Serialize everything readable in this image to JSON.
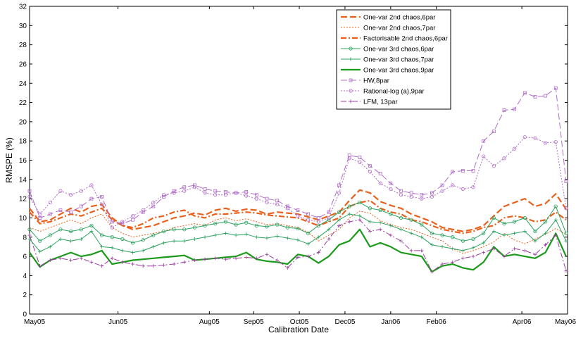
{
  "chart_data": {
    "type": "line",
    "title": "",
    "xlabel": "Calibration Date",
    "ylabel": "RMSPE (%)",
    "ylim": [
      0,
      32
    ],
    "yticks": [
      0,
      2,
      4,
      6,
      8,
      10,
      12,
      14,
      16,
      18,
      20,
      22,
      24,
      26,
      28,
      30,
      32
    ],
    "xlim": [
      "2005-05-01",
      "2006-05-01"
    ],
    "xticks": [
      {
        "date": "2005-05-01",
        "label": "May05"
      },
      {
        "date": "2005-06-30",
        "label": "Jun05"
      },
      {
        "date": "2005-08-31",
        "label": "Aug05"
      },
      {
        "date": "2005-09-30",
        "label": "Sep05"
      },
      {
        "date": "2005-10-31",
        "label": "Oct05"
      },
      {
        "date": "2005-12-01",
        "label": "Dec05"
      },
      {
        "date": "2006-01-01",
        "label": "Jan06"
      },
      {
        "date": "2006-02-01",
        "label": "Feb06"
      },
      {
        "date": "2006-03-31",
        "label": "Apr06"
      },
      {
        "date": "2006-05-01",
        "label": "May06"
      }
    ],
    "grid": false,
    "legend_position": "top-center",
    "x": [
      "2005-05-01",
      "2005-05-08",
      "2005-05-15",
      "2005-05-22",
      "2005-05-29",
      "2005-06-05",
      "2005-06-12",
      "2005-06-19",
      "2005-06-26",
      "2005-07-03",
      "2005-07-10",
      "2005-07-17",
      "2005-07-24",
      "2005-07-31",
      "2005-08-07",
      "2005-08-14",
      "2005-08-21",
      "2005-08-28",
      "2005-09-04",
      "2005-09-11",
      "2005-09-18",
      "2005-09-25",
      "2005-10-02",
      "2005-10-09",
      "2005-10-16",
      "2005-10-23",
      "2005-10-30",
      "2005-11-06",
      "2005-11-13",
      "2005-11-20",
      "2005-11-27",
      "2005-12-04",
      "2005-12-11",
      "2005-12-18",
      "2005-12-25",
      "2006-01-01",
      "2006-01-08",
      "2006-01-15",
      "2006-01-22",
      "2006-01-29",
      "2006-02-05",
      "2006-02-12",
      "2006-02-19",
      "2006-02-26",
      "2006-03-05",
      "2006-03-12",
      "2006-03-19",
      "2006-03-26",
      "2006-04-02",
      "2006-04-09",
      "2006-04-16",
      "2006-04-23",
      "2006-04-30"
    ],
    "series": [
      {
        "name": "One-var 2nd chaos,6par",
        "color": "#e8601c",
        "style": "dashed-thick",
        "marker": "none",
        "values": [
          11.0,
          9.6,
          9.8,
          10.4,
          11.0,
          10.6,
          11.2,
          11.4,
          10.0,
          9.2,
          8.8,
          9.0,
          9.2,
          9.6,
          10.0,
          10.2,
          10.5,
          10.3,
          10.8,
          11.0,
          10.7,
          10.9,
          10.8,
          10.4,
          10.6,
          10.5,
          10.4,
          10.1,
          9.8,
          10.2,
          10.6,
          11.8,
          12.9,
          12.6,
          11.7,
          11.3,
          11.0,
          10.4,
          10.0,
          9.6,
          9.0,
          8.8,
          8.6,
          8.8,
          9.2,
          10.2,
          11.2,
          11.6,
          12.0,
          11.2,
          11.5,
          12.5,
          10.9
        ]
      },
      {
        "name": "One-var 2nd chaos,7par",
        "color": "#e8601c",
        "style": "dotted",
        "marker": "none",
        "values": [
          9.0,
          8.6,
          9.0,
          9.4,
          9.8,
          9.4,
          10.0,
          10.4,
          9.0,
          8.4,
          8.0,
          8.2,
          8.4,
          8.6,
          9.0,
          9.2,
          9.4,
          9.2,
          9.8,
          10.0,
          9.7,
          9.9,
          9.6,
          9.3,
          9.4,
          9.2,
          9.0,
          8.5,
          7.6,
          8.2,
          8.8,
          10.0,
          10.7,
          10.5,
          9.7,
          9.3,
          9.0,
          8.8,
          8.4,
          8.0,
          7.6,
          6.8,
          6.3,
          6.6,
          7.0,
          7.5,
          8.4,
          7.7,
          7.3,
          7.8,
          8.3,
          8.9,
          8.3
        ]
      },
      {
        "name": "Factorisable 2nd chaos,6par",
        "color": "#e8601c",
        "style": "dashdot-thick",
        "marker": "none",
        "values": [
          10.6,
          9.4,
          9.6,
          10.0,
          10.4,
          10.2,
          10.6,
          11.0,
          9.8,
          9.2,
          9.0,
          9.4,
          10.0,
          10.2,
          10.6,
          10.8,
          10.2,
          10.0,
          10.4,
          10.4,
          10.5,
          10.6,
          10.5,
          10.3,
          10.2,
          10.1,
          10.0,
          9.6,
          9.2,
          9.6,
          10.0,
          11.2,
          11.6,
          11.8,
          11.0,
          10.6,
          10.4,
          9.8,
          9.6,
          9.2,
          8.8,
          8.6,
          8.4,
          8.6,
          9.0,
          9.2,
          10.0,
          10.2,
          10.0,
          9.6,
          9.8,
          10.6,
          9.8
        ]
      },
      {
        "name": "One-var 3rd chaos,6par",
        "color": "#2ca25f",
        "style": "solid",
        "marker": "circle",
        "values": [
          8.8,
          7.6,
          8.2,
          8.8,
          8.6,
          8.8,
          9.2,
          8.2,
          8.0,
          7.8,
          7.4,
          7.7,
          8.2,
          8.6,
          8.8,
          8.8,
          9.0,
          9.2,
          9.4,
          9.6,
          9.3,
          9.5,
          9.2,
          9.1,
          9.3,
          9.0,
          8.9,
          8.4,
          9.2,
          9.8,
          10.6,
          11.2,
          11.6,
          11.0,
          10.8,
          10.4,
          10.0,
          9.8,
          9.3,
          8.4,
          8.2,
          8.0,
          7.6,
          7.8,
          8.4,
          10.0,
          9.4,
          9.6,
          10.0,
          8.6,
          9.6,
          11.2,
          8.4
        ]
      },
      {
        "name": "One-var 3rd chaos,7par",
        "color": "#2ca25f",
        "style": "solid",
        "marker": "plus",
        "values": [
          7.8,
          6.5,
          7.0,
          7.8,
          7.6,
          7.8,
          8.6,
          7.0,
          6.9,
          6.6,
          6.4,
          6.6,
          7.0,
          7.4,
          7.6,
          7.6,
          7.8,
          8.0,
          8.2,
          8.4,
          8.2,
          8.3,
          8.0,
          7.9,
          8.1,
          7.9,
          7.7,
          7.3,
          8.0,
          8.8,
          9.8,
          10.4,
          10.2,
          9.6,
          9.5,
          9.2,
          8.8,
          8.4,
          8.0,
          7.2,
          7.0,
          6.8,
          6.6,
          6.9,
          7.4,
          8.6,
          8.2,
          8.4,
          8.6,
          7.6,
          8.4,
          9.8,
          7.6
        ]
      },
      {
        "name": "One-var 3rd chaos,9par",
        "color": "#1a9a1a",
        "style": "solid-thick",
        "marker": "none",
        "values": [
          6.4,
          4.9,
          5.6,
          6.0,
          6.4,
          6.0,
          6.2,
          6.6,
          5.2,
          5.4,
          5.6,
          5.7,
          5.8,
          5.9,
          6.0,
          6.1,
          5.6,
          5.7,
          5.8,
          5.9,
          6.0,
          6.4,
          5.7,
          5.5,
          5.4,
          5.2,
          6.2,
          6.0,
          5.3,
          6.0,
          7.2,
          7.6,
          8.8,
          7.0,
          7.4,
          7.0,
          6.4,
          6.2,
          6.0,
          4.4,
          5.0,
          5.2,
          4.8,
          4.6,
          5.4,
          7.0,
          6.0,
          6.2,
          6.0,
          5.8,
          6.4,
          8.4,
          6.0
        ]
      },
      {
        "name": "HW,8par",
        "color": "#b06cc8",
        "style": "dashed",
        "marker": "square",
        "values": [
          12.8,
          10.0,
          10.4,
          10.8,
          10.6,
          11.2,
          12.0,
          12.2,
          9.6,
          9.4,
          9.8,
          10.6,
          11.2,
          12.2,
          12.8,
          13.2,
          13.4,
          13.0,
          12.8,
          12.7,
          12.6,
          12.7,
          12.4,
          12.0,
          11.8,
          11.2,
          10.8,
          10.4,
          10.0,
          10.6,
          13.4,
          16.5,
          16.3,
          15.4,
          14.6,
          13.6,
          12.8,
          12.6,
          12.4,
          12.6,
          13.4,
          14.8,
          14.9,
          14.9,
          18.0,
          19.0,
          21.2,
          21.3,
          23.0,
          22.6,
          22.7,
          23.5,
          13.8
        ]
      },
      {
        "name": "Rational-log (a),9par",
        "color": "#b06cc8",
        "style": "dotted",
        "marker": "circle",
        "values": [
          12.2,
          10.4,
          11.6,
          12.8,
          12.4,
          12.8,
          13.4,
          11.4,
          9.0,
          9.6,
          10.2,
          10.8,
          11.6,
          12.4,
          12.6,
          12.8,
          13.2,
          12.6,
          12.4,
          12.4,
          12.6,
          12.3,
          12.0,
          11.6,
          11.4,
          11.0,
          10.2,
          9.8,
          9.6,
          10.0,
          12.6,
          16.2,
          15.8,
          14.8,
          13.6,
          13.0,
          12.4,
          12.2,
          12.0,
          12.2,
          12.8,
          13.4,
          13.0,
          13.2,
          16.4,
          15.4,
          16.2,
          17.2,
          18.4,
          18.3,
          17.8,
          17.9,
          11.0
        ]
      },
      {
        "name": "LFM, 13par",
        "color": "#9b3ca0",
        "style": "dashdot",
        "marker": "plus",
        "values": [
          8.2,
          5.0,
          5.6,
          5.8,
          5.6,
          5.8,
          5.4,
          5.0,
          5.8,
          5.4,
          5.2,
          5.0,
          5.0,
          5.1,
          5.2,
          5.4,
          5.6,
          5.7,
          5.8,
          5.7,
          5.8,
          5.9,
          5.8,
          6.2,
          5.6,
          4.8,
          5.9,
          6.0,
          6.4,
          7.8,
          9.2,
          9.6,
          9.8,
          8.6,
          8.8,
          8.2,
          7.6,
          6.6,
          6.6,
          4.4,
          5.2,
          5.4,
          5.8,
          6.0,
          6.4,
          6.8,
          6.0,
          6.8,
          6.6,
          6.2,
          7.2,
          8.2,
          4.5
        ]
      }
    ]
  }
}
